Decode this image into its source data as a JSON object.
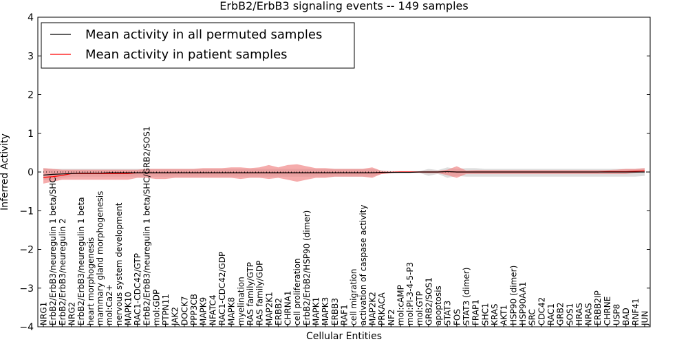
{
  "chart_data": {
    "type": "line",
    "title": "ErbB2/ErbB3 signaling events -- 149 samples",
    "xlabel": "Cellular Entities",
    "ylabel": "Inferred Activity",
    "ylim": [
      -4,
      4
    ],
    "yticks": [
      4,
      3,
      2,
      1,
      0,
      -1,
      -2,
      -3,
      -4
    ],
    "grid": false,
    "legend_position": "top-left",
    "colors": {
      "permuted": "#000000",
      "patient": "#ff0000",
      "patient_band": "#f08080",
      "permuted_band": "#c8c8c8"
    },
    "categories": [
      "NRG1",
      "ErbB2/ErbB3/neuregulin 1 beta/SHC",
      "ErbB2/ErbB3/neuregulin 2",
      "NRG2",
      "ErbB2/ErbB3/neuregulin 1 beta",
      "heart morphogenesis",
      "mammary gland morphogenesis",
      "mol:Ca2+",
      "nervous system development",
      "MAPK10",
      "RAC1-CDC42/GTP",
      "ErbB2/ErbB3/neuregulin 1 beta/SHC/GRB2/SOS1",
      "mol:GDP",
      "PTPN11",
      "JAK2",
      "DOCK7",
      "PPP3CB",
      "MAPK9",
      "NFATC4",
      "RAC1-CDC42/GDP",
      "MAPK8",
      "myelination",
      "RAS family/GTP",
      "RAS family/GDP",
      "MAP2K1",
      "ERBB2",
      "CHRNA1",
      "cell proliferation",
      "ErbB2/ErbB2/HSP90 (dimer)",
      "MAPK1",
      "MAPK3",
      "ERBB3",
      "RAF1",
      "cell migration",
      "activation of caspase activity",
      "MAP2K2",
      "PRKACA",
      "NF2",
      "mol:cAMP",
      "mol:PI-3-4-5-P3",
      "mol:GTP",
      "GRB2/SOS1",
      "apoptosis",
      "STAT3",
      "FOS",
      "STAT3 (dimer)",
      "FRAP1",
      "SHC1",
      "KRAS",
      "AKT1",
      "HSP90 (dimer)",
      "HSP90AA1",
      "SRC",
      "CDC42",
      "RAC1",
      "GRB2",
      "SOS1",
      "HRAS",
      "NRAS",
      "ERBB2IP",
      "CHRNE",
      "USP8",
      "BAD",
      "RNF41",
      "JUN"
    ],
    "series": [
      {
        "name": "Mean activity in all permuted samples",
        "values": [
          -0.08,
          -0.06,
          -0.05,
          -0.04,
          -0.03,
          -0.03,
          -0.03,
          -0.02,
          -0.02,
          -0.02,
          -0.02,
          -0.02,
          -0.02,
          -0.02,
          -0.02,
          -0.02,
          -0.02,
          -0.02,
          -0.02,
          -0.02,
          -0.02,
          -0.02,
          -0.02,
          -0.02,
          -0.02,
          -0.02,
          -0.02,
          -0.02,
          -0.02,
          -0.02,
          -0.02,
          -0.02,
          -0.02,
          -0.02,
          -0.02,
          -0.02,
          -0.01,
          -0.01,
          -0.01,
          -0.01,
          0.0,
          0.0,
          0.0,
          0.01,
          0.0,
          0.0,
          0.0,
          0.0,
          0.0,
          0.0,
          0.0,
          0.0,
          0.0,
          0.0,
          0.0,
          0.0,
          0.0,
          0.0,
          0.0,
          0.0,
          0.0,
          0.0,
          0.0,
          0.0,
          0.0
        ],
        "lower": [
          -0.2,
          -0.2,
          -0.15,
          -0.12,
          -0.12,
          -0.12,
          -0.12,
          -0.12,
          -0.12,
          -0.12,
          -0.12,
          -0.12,
          -0.12,
          -0.12,
          -0.12,
          -0.12,
          -0.12,
          -0.12,
          -0.12,
          -0.12,
          -0.12,
          -0.12,
          -0.12,
          -0.12,
          -0.12,
          -0.12,
          -0.12,
          -0.12,
          -0.12,
          -0.12,
          -0.12,
          -0.12,
          -0.12,
          -0.12,
          -0.12,
          -0.12,
          -0.05,
          -0.03,
          -0.02,
          -0.02,
          -0.02,
          -0.1,
          -0.05,
          -0.15,
          -0.1,
          -0.12,
          -0.12,
          -0.12,
          -0.12,
          -0.12,
          -0.12,
          -0.12,
          -0.12,
          -0.12,
          -0.12,
          -0.12,
          -0.12,
          -0.12,
          -0.12,
          -0.12,
          -0.12,
          -0.12,
          -0.12,
          -0.12,
          -0.1
        ],
        "upper": [
          0.1,
          0.08,
          0.08,
          0.08,
          0.08,
          0.08,
          0.08,
          0.08,
          0.08,
          0.08,
          0.08,
          0.08,
          0.08,
          0.08,
          0.08,
          0.08,
          0.08,
          0.08,
          0.08,
          0.08,
          0.08,
          0.08,
          0.08,
          0.08,
          0.08,
          0.08,
          0.08,
          0.08,
          0.08,
          0.08,
          0.08,
          0.08,
          0.08,
          0.08,
          0.08,
          0.08,
          0.04,
          0.02,
          0.02,
          0.02,
          0.02,
          0.08,
          0.05,
          0.12,
          0.08,
          0.1,
          0.1,
          0.08,
          0.08,
          0.08,
          0.08,
          0.08,
          0.08,
          0.08,
          0.08,
          0.08,
          0.08,
          0.08,
          0.08,
          0.08,
          0.08,
          0.08,
          0.08,
          0.08,
          0.1
        ]
      },
      {
        "name": "Mean activity in patient samples",
        "values": [
          -0.14,
          -0.12,
          -0.09,
          -0.04,
          -0.04,
          -0.04,
          -0.04,
          -0.04,
          -0.04,
          -0.04,
          -0.02,
          -0.02,
          -0.02,
          -0.02,
          -0.02,
          -0.02,
          -0.02,
          -0.02,
          -0.02,
          -0.02,
          -0.02,
          -0.02,
          -0.02,
          -0.02,
          -0.02,
          -0.02,
          -0.02,
          -0.02,
          -0.02,
          -0.02,
          -0.02,
          -0.02,
          -0.02,
          -0.02,
          -0.02,
          -0.02,
          -0.02,
          -0.01,
          0.0,
          0.0,
          0.0,
          0.0,
          0.0,
          0.01,
          0.0,
          0.0,
          0.0,
          0.0,
          0.0,
          0.0,
          0.0,
          0.0,
          0.0,
          0.0,
          0.0,
          0.0,
          0.0,
          0.0,
          0.0,
          0.0,
          0.01,
          0.01,
          0.01,
          0.02,
          0.03
        ],
        "lower": [
          -0.3,
          -0.25,
          -0.2,
          -0.2,
          -0.2,
          -0.2,
          -0.2,
          -0.2,
          -0.2,
          -0.2,
          -0.15,
          -0.15,
          -0.18,
          -0.18,
          -0.15,
          -0.15,
          -0.15,
          -0.15,
          -0.15,
          -0.15,
          -0.15,
          -0.18,
          -0.15,
          -0.15,
          -0.18,
          -0.15,
          -0.2,
          -0.25,
          -0.2,
          -0.15,
          -0.15,
          -0.12,
          -0.12,
          -0.12,
          -0.12,
          -0.15,
          -0.05,
          -0.03,
          -0.02,
          -0.02,
          -0.02,
          -0.03,
          -0.03,
          -0.08,
          -0.15,
          -0.05,
          -0.05,
          -0.05,
          -0.05,
          -0.05,
          -0.05,
          -0.05,
          -0.05,
          -0.05,
          -0.05,
          -0.05,
          -0.05,
          -0.05,
          -0.05,
          -0.05,
          -0.05,
          -0.05,
          -0.05,
          -0.02,
          0.0
        ],
        "upper": [
          0.1,
          0.08,
          0.06,
          0.06,
          0.06,
          0.06,
          0.06,
          0.06,
          0.06,
          0.06,
          0.06,
          0.08,
          0.08,
          0.08,
          0.08,
          0.08,
          0.08,
          0.1,
          0.1,
          0.1,
          0.12,
          0.12,
          0.1,
          0.12,
          0.18,
          0.12,
          0.18,
          0.2,
          0.15,
          0.1,
          0.1,
          0.08,
          0.08,
          0.08,
          0.08,
          0.12,
          0.03,
          0.02,
          0.02,
          0.02,
          0.02,
          0.03,
          0.03,
          0.06,
          0.15,
          0.04,
          0.05,
          0.05,
          0.05,
          0.05,
          0.05,
          0.05,
          0.05,
          0.05,
          0.05,
          0.05,
          0.05,
          0.05,
          0.05,
          0.05,
          0.05,
          0.06,
          0.08,
          0.08,
          0.1
        ]
      }
    ]
  }
}
